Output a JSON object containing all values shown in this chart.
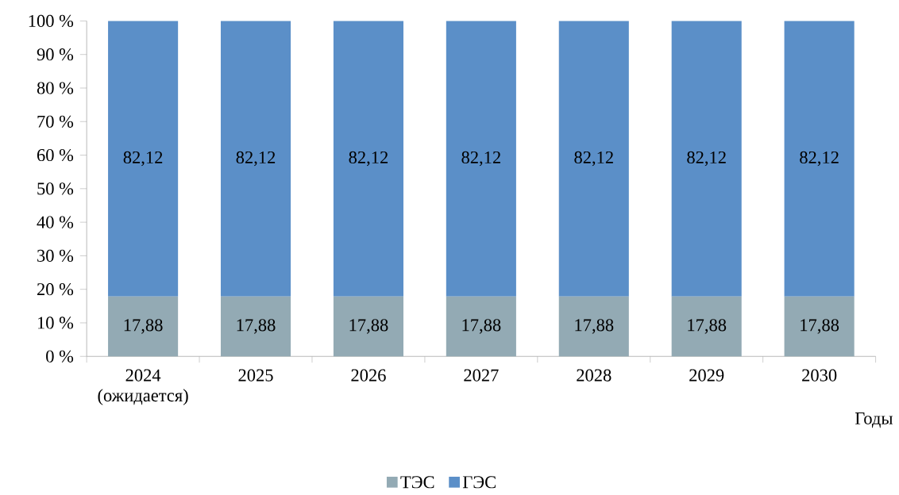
{
  "chart_data": {
    "type": "bar",
    "stacked": true,
    "xlabel": "Годы",
    "categories": [
      "2024 (ожидается)",
      "2025",
      "2026",
      "2027",
      "2028",
      "2029",
      "2030"
    ],
    "series": [
      {
        "name": "ТЭС",
        "color": "#93aab4",
        "values": [
          17.88,
          17.88,
          17.88,
          17.88,
          17.88,
          17.88,
          17.88
        ],
        "value_labels": [
          "17,88",
          "17,88",
          "17,88",
          "17,88",
          "17,88",
          "17,88",
          "17,88"
        ]
      },
      {
        "name": "ГЭС",
        "color": "#5b8fc8",
        "values": [
          82.12,
          82.12,
          82.12,
          82.12,
          82.12,
          82.12,
          82.12
        ],
        "value_labels": [
          "82,12",
          "82,12",
          "82,12",
          "82,12",
          "82,12",
          "82,12",
          "82,12"
        ]
      }
    ],
    "ylim": [
      0,
      100
    ],
    "yticks": [
      {
        "value": 0,
        "label": "0 %"
      },
      {
        "value": 10,
        "label": "10 %"
      },
      {
        "value": 20,
        "label": "20 %"
      },
      {
        "value": 30,
        "label": "30 %"
      },
      {
        "value": 40,
        "label": "40 %"
      },
      {
        "value": 50,
        "label": "50 %"
      },
      {
        "value": 60,
        "label": "60 %"
      },
      {
        "value": 70,
        "label": "70 %"
      },
      {
        "value": 80,
        "label": "80 %"
      },
      {
        "value": 90,
        "label": "90 %"
      },
      {
        "value": 100,
        "label": "100 %"
      }
    ],
    "grid": false,
    "legend": "bottom"
  }
}
